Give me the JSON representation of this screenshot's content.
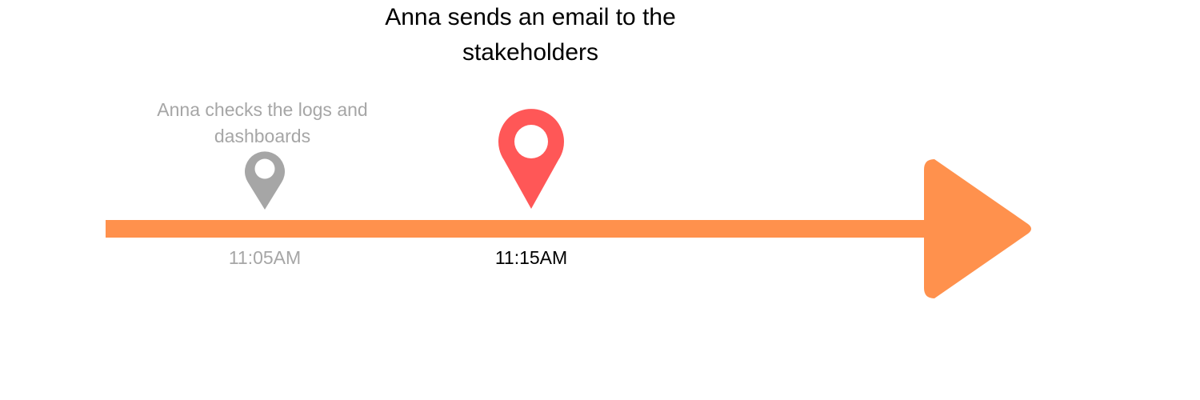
{
  "timeline": {
    "events": [
      {
        "time": "11:05AM",
        "caption": "Anna checks the logs and dashboards",
        "status": "past",
        "marker_icon": "map-pin-icon",
        "color": "#a6a6a6"
      },
      {
        "time": "11:15AM",
        "caption": "Anna sends an email to the stakeholders",
        "status": "current",
        "marker_icon": "map-pin-icon",
        "color": "#ff5757"
      }
    ],
    "arrow_color": "#ff914d",
    "direction_icon": "arrow-right-icon"
  }
}
